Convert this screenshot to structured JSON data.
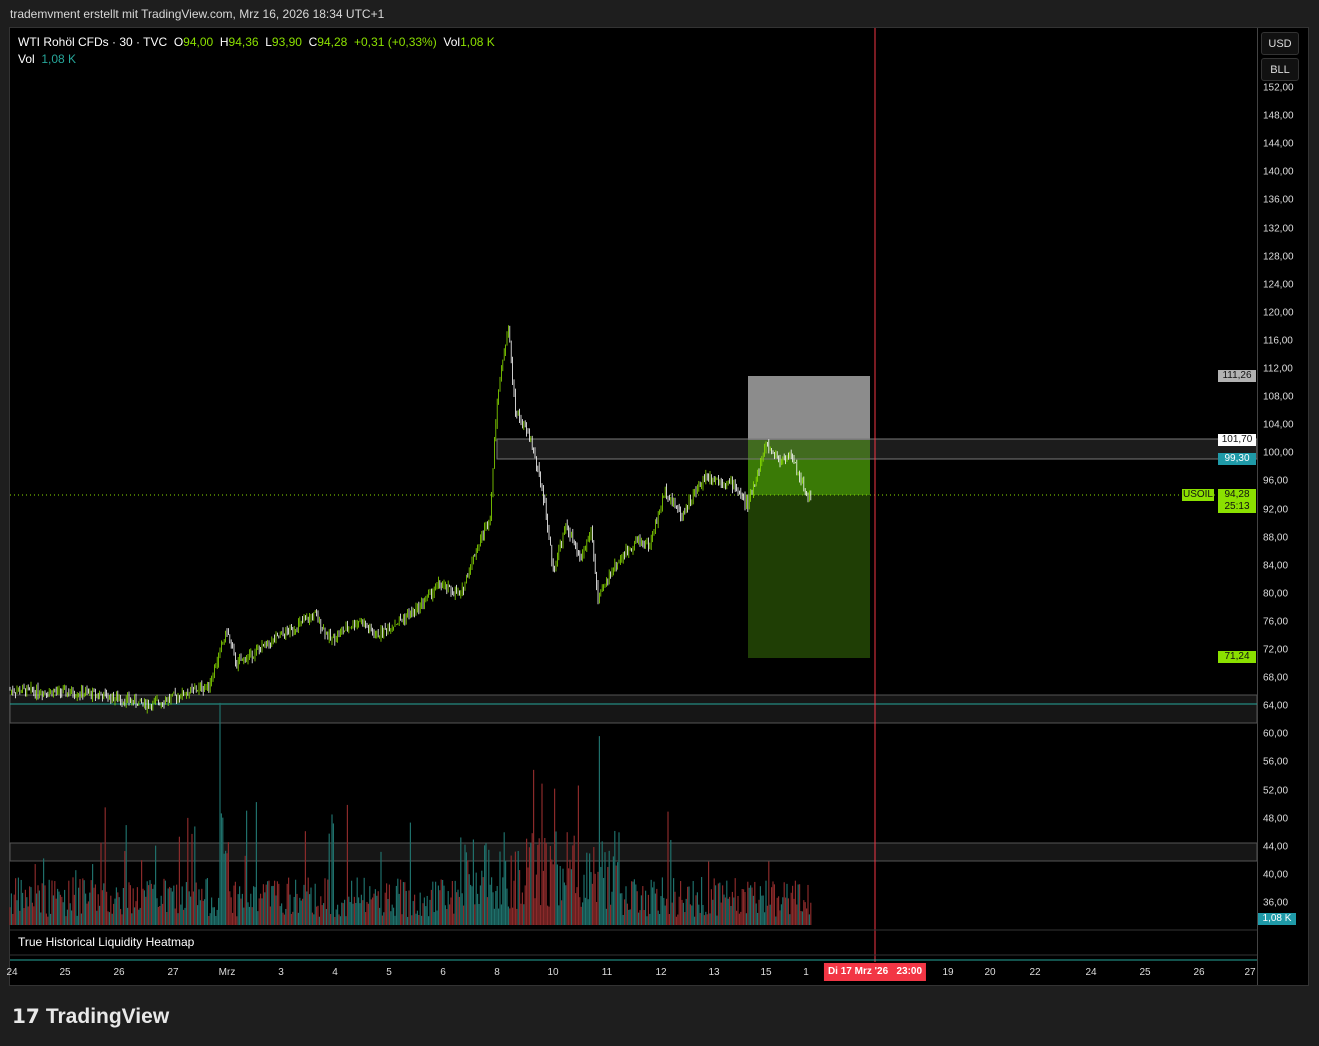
{
  "header": {
    "caption": "trademvment erstellt mit TradingView.com, Mrz 16, 2026 18:34 UTC+1"
  },
  "legend": {
    "symbol": "WTI Rohöl CFDs · 30 · TVC",
    "o_label": "O",
    "o": "94,00",
    "h_label": "H",
    "h": "94,36",
    "l_label": "L",
    "l": "93,90",
    "c_label": "C",
    "c": "94,28",
    "change": "+0,31 (+0,33%)",
    "vol_label": "Vol",
    "vol": "1,08 K",
    "vol2_label": "Vol",
    "vol2": "1,08 K"
  },
  "axis": {
    "currency": "USD",
    "unit": "BLL",
    "prices": [
      "152,00",
      "148,00",
      "144,00",
      "140,00",
      "136,00",
      "132,00",
      "128,00",
      "124,00",
      "120,00",
      "116,00",
      "112,00",
      "108,00",
      "104,00",
      "100,00",
      "96,00",
      "92,00",
      "88,00",
      "84,00",
      "80,00",
      "76,00",
      "72,00",
      "68,00",
      "64,00",
      "60,00",
      "56,00",
      "52,00",
      "48,00",
      "44,00",
      "40,00",
      "36,00"
    ],
    "tags": {
      "stop": "111,26",
      "entry": "101,70",
      "zone": "99,30",
      "symbol": "USOIL",
      "last": "94,28",
      "countdown": "25:13",
      "target": "71,24",
      "volume": "1,08 K"
    }
  },
  "time_axis": {
    "labels": [
      "24",
      "25",
      "26",
      "27",
      "Mrz",
      "3",
      "4",
      "5",
      "6",
      "8",
      "10",
      "11",
      "12",
      "13",
      "15",
      "1",
      "19",
      "20",
      "22",
      "24",
      "25",
      "26",
      "27"
    ],
    "crosshair": "Di 17 Mrz '26   23:00"
  },
  "indicator": {
    "name": "True Historical Liquidity Heatmap"
  },
  "colors": {
    "up": "#8be000",
    "down": "#ffffff",
    "vol_up": "#1f6f6a",
    "vol_down": "#8a2a2a",
    "accent": "#26a69a",
    "crosshair": "#f23645"
  },
  "chart_data": {
    "type": "candlestick",
    "price_range": [
      36,
      152
    ],
    "price_path": [
      [
        "24",
        0,
        66.3
      ],
      [
        "25",
        12,
        65.8
      ],
      [
        "26",
        14,
        64.2
      ],
      [
        "27",
        16,
        67
      ],
      [
        "Mrz",
        0,
        74.8
      ],
      [
        "Mrz",
        4,
        70
      ],
      [
        "3",
        15,
        77
      ],
      [
        "3",
        22,
        73.5
      ],
      [
        "4",
        11,
        76.3
      ],
      [
        "4",
        18,
        74
      ],
      [
        "5",
        12,
        77.7
      ],
      [
        "5",
        22,
        81.3
      ],
      [
        "6",
        8,
        79.8
      ],
      [
        "6",
        12,
        84
      ],
      [
        "6",
        21,
        91.2
      ],
      [
        "8",
        0,
        107.6
      ],
      [
        "8",
        5,
        118.3
      ],
      [
        "8",
        8,
        106.2
      ],
      [
        "8",
        15,
        102
      ],
      [
        "8",
        21,
        93.4
      ],
      [
        "10",
        0,
        83.4
      ],
      [
        "10",
        6,
        89.8
      ],
      [
        "10",
        12,
        84.8
      ],
      [
        "10",
        17,
        89
      ],
      [
        "10",
        20,
        79
      ],
      [
        "11",
        2,
        83.4
      ],
      [
        "11",
        13,
        87.7
      ],
      [
        "11",
        19,
        87
      ],
      [
        "12",
        2,
        94.8
      ],
      [
        "12",
        9,
        91.2
      ],
      [
        "12",
        20,
        96.9
      ],
      [
        "13",
        9,
        95.5
      ],
      [
        "13",
        15,
        92.6
      ],
      [
        "15",
        0,
        101.2
      ],
      [
        "15",
        6,
        99
      ],
      [
        "15",
        11,
        99.8
      ],
      [
        "15",
        18,
        94.1
      ],
      [
        "15",
        21,
        94.28
      ]
    ]
  }
}
